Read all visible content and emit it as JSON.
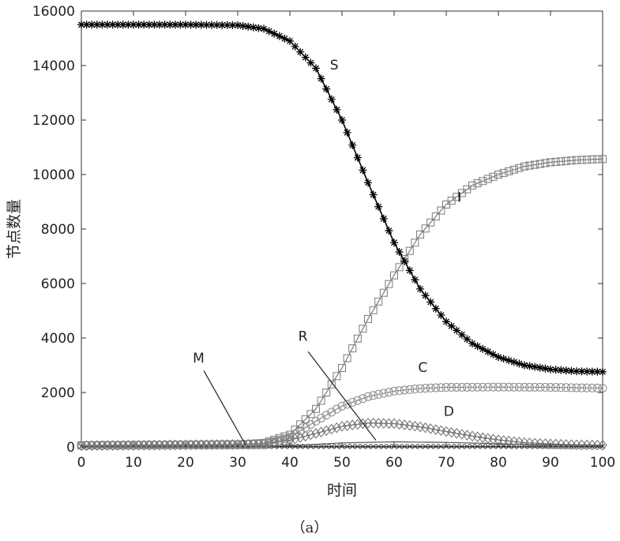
{
  "chart_data": {
    "type": "line",
    "xlabel": "时间",
    "ylabel": "节点数量",
    "caption": "（a）",
    "xlim": [
      0,
      100
    ],
    "ylim": [
      0,
      16000
    ],
    "xticks": [
      0,
      10,
      20,
      30,
      40,
      50,
      60,
      70,
      80,
      90,
      100
    ],
    "yticks": [
      0,
      2000,
      4000,
      6000,
      8000,
      10000,
      12000,
      14000,
      16000
    ],
    "grid": false,
    "series": [
      {
        "name": "S",
        "marker": "asterisk",
        "color": "#000000",
        "points": [
          [
            0,
            15500
          ],
          [
            10,
            15500
          ],
          [
            20,
            15500
          ],
          [
            30,
            15480
          ],
          [
            35,
            15350
          ],
          [
            40,
            14900
          ],
          [
            45,
            13900
          ],
          [
            50,
            12000
          ],
          [
            55,
            9700
          ],
          [
            60,
            7500
          ],
          [
            65,
            5800
          ],
          [
            70,
            4600
          ],
          [
            75,
            3800
          ],
          [
            80,
            3300
          ],
          [
            85,
            3000
          ],
          [
            90,
            2850
          ],
          [
            95,
            2780
          ],
          [
            100,
            2760
          ]
        ]
      },
      {
        "name": "I",
        "marker": "square",
        "color": "#7a7a7a",
        "points": [
          [
            0,
            60
          ],
          [
            30,
            80
          ],
          [
            35,
            150
          ],
          [
            40,
            450
          ],
          [
            45,
            1400
          ],
          [
            50,
            2900
          ],
          [
            55,
            4700
          ],
          [
            60,
            6300
          ],
          [
            65,
            7800
          ],
          [
            70,
            8900
          ],
          [
            75,
            9600
          ],
          [
            80,
            10000
          ],
          [
            85,
            10300
          ],
          [
            90,
            10450
          ],
          [
            95,
            10530
          ],
          [
            100,
            10570
          ]
        ]
      },
      {
        "name": "C",
        "marker": "circle",
        "color": "#8c8c8c",
        "points": [
          [
            0,
            60
          ],
          [
            35,
            110
          ],
          [
            40,
            350
          ],
          [
            45,
            950
          ],
          [
            50,
            1500
          ],
          [
            55,
            1850
          ],
          [
            60,
            2050
          ],
          [
            65,
            2150
          ],
          [
            70,
            2190
          ],
          [
            80,
            2200
          ],
          [
            90,
            2190
          ],
          [
            100,
            2160
          ]
        ]
      },
      {
        "name": "D",
        "marker": "diamond",
        "color": "#6e6e6e",
        "points": [
          [
            0,
            50
          ],
          [
            35,
            100
          ],
          [
            40,
            250
          ],
          [
            45,
            500
          ],
          [
            50,
            760
          ],
          [
            55,
            880
          ],
          [
            60,
            860
          ],
          [
            65,
            740
          ],
          [
            70,
            570
          ],
          [
            75,
            400
          ],
          [
            80,
            260
          ],
          [
            85,
            160
          ],
          [
            90,
            110
          ],
          [
            95,
            80
          ],
          [
            100,
            70
          ]
        ]
      },
      {
        "name": "R",
        "marker": "none",
        "color": "#555555",
        "points": [
          [
            0,
            20
          ],
          [
            40,
            50
          ],
          [
            50,
            150
          ],
          [
            60,
            190
          ],
          [
            70,
            170
          ],
          [
            80,
            120
          ],
          [
            90,
            80
          ],
          [
            100,
            60
          ]
        ]
      },
      {
        "name": "M",
        "marker": "x",
        "color": "#333333",
        "points": [
          [
            0,
            20
          ],
          [
            50,
            20
          ],
          [
            100,
            20
          ]
        ]
      }
    ],
    "annotations": [
      {
        "text": "S",
        "x": 48.5,
        "y": 13850,
        "leader": null
      },
      {
        "text": "I",
        "x": 72.5,
        "y": 9000,
        "leader": null
      },
      {
        "text": "C",
        "x": 65.5,
        "y": 2750,
        "leader": null
      },
      {
        "text": "D",
        "x": 70.5,
        "y": 1150,
        "leader": null
      },
      {
        "text": "R",
        "x": 42.5,
        "y": 3900,
        "leader": [
          [
            43.5,
            3500
          ],
          [
            56.5,
            250
          ]
        ]
      },
      {
        "text": "M",
        "x": 22.5,
        "y": 3100,
        "leader": [
          [
            23.5,
            2800
          ],
          [
            31.5,
            80
          ]
        ]
      }
    ]
  }
}
